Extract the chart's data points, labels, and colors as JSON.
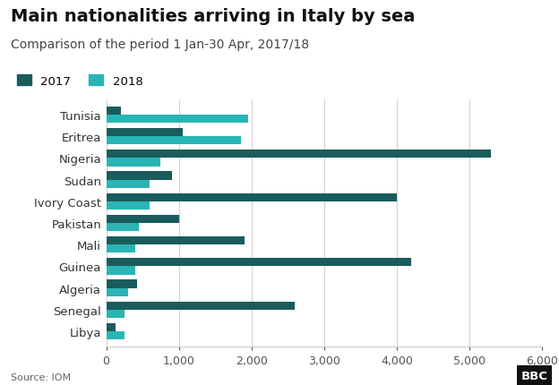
{
  "title": "Main nationalities arriving in Italy by sea",
  "subtitle": "Comparison of the period 1 Jan-30 Apr, 2017/18",
  "source": "Source: IOM",
  "categories": [
    "Libya",
    "Senegal",
    "Algeria",
    "Guinea",
    "Mali",
    "Pakistan",
    "Ivory Coast",
    "Sudan",
    "Nigeria",
    "Eritrea",
    "Tunisia"
  ],
  "values_2017": [
    130,
    2600,
    420,
    4200,
    1900,
    1000,
    4000,
    900,
    5300,
    1050,
    200
  ],
  "values_2018": [
    250,
    250,
    300,
    400,
    400,
    450,
    600,
    600,
    750,
    1850,
    1950
  ],
  "color_2017": "#1a5c5c",
  "color_2018": "#2ab5b5",
  "background_color": "#ffffff",
  "xlim": [
    0,
    6000
  ],
  "xticks": [
    0,
    1000,
    2000,
    3000,
    4000,
    5000,
    6000
  ],
  "bar_height": 0.38,
  "legend_2017": "2017",
  "legend_2018": "2018",
  "title_fontsize": 14,
  "subtitle_fontsize": 10,
  "label_fontsize": 9.5,
  "tick_fontsize": 9
}
